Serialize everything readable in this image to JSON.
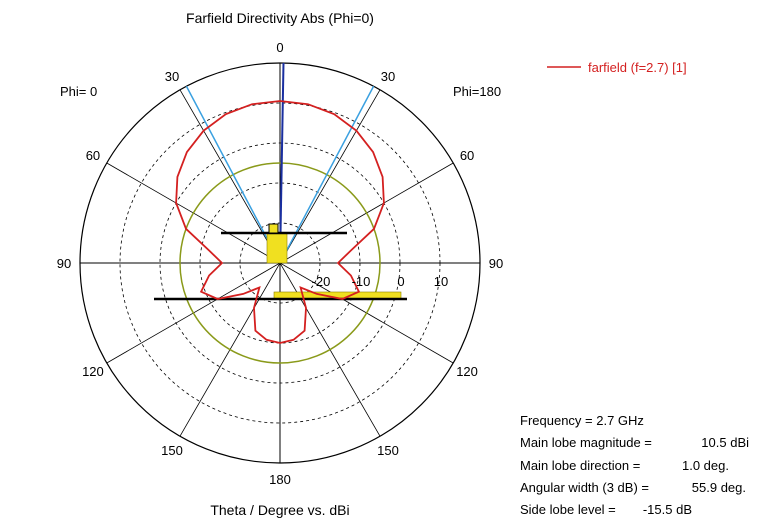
{
  "chart_data": {
    "type": "polar-line",
    "title": "Farfield Directivity Abs (Phi=0)",
    "xlabel": "Theta / Degree vs. dBi",
    "left_label": "Phi=  0",
    "right_label": "Phi=180",
    "theta_tick_labels": [
      "0",
      "30",
      "60",
      "90",
      "120",
      "150",
      "180"
    ],
    "radial_tick_labels": [
      "-20",
      "-10",
      "0",
      "10"
    ],
    "rlim": [
      -30,
      20
    ],
    "radial_ticks": [
      -20,
      -10,
      0,
      10
    ],
    "grid": true,
    "legend_position": "top-right",
    "series": [
      {
        "name": "farfield (f=2.7) [1]",
        "color": "#d42020",
        "points": [
          {
            "theta": 0,
            "value": 10.5
          },
          {
            "theta": 10,
            "value": 10.3
          },
          {
            "theta": 20,
            "value": 9.6
          },
          {
            "theta": 30,
            "value": 8.2
          },
          {
            "theta": 40,
            "value": 6.2
          },
          {
            "theta": 50,
            "value": 3.5
          },
          {
            "theta": 60,
            "value": 0
          },
          {
            "theta": 70,
            "value": -5
          },
          {
            "theta": 80,
            "value": -12
          },
          {
            "theta": 90,
            "value": -15.5
          },
          {
            "theta": 100,
            "value": -12
          },
          {
            "theta": 110,
            "value": -9
          },
          {
            "theta": 120,
            "value": -12
          },
          {
            "theta": 130,
            "value": -18
          },
          {
            "theta": 140,
            "value": -22
          },
          {
            "theta": 150,
            "value": -17
          },
          {
            "theta": 160,
            "value": -12
          },
          {
            "theta": 170,
            "value": -10.5
          },
          {
            "theta": 180,
            "value": -10
          }
        ]
      }
    ],
    "markers": {
      "main_lobe_direction": 1.0,
      "half_power_beam_edges": [
        -27.9,
        27.9
      ],
      "side_lobe_ring_value": -5,
      "main_lobe_color": "#1a2fa0",
      "beamwidth_color": "#3aa0e0",
      "side_lobe_ring_color": "#8a9a1a",
      "bar_fill_color": "#f0e020"
    },
    "info": {
      "frequency": "Frequency = 2.7 GHz",
      "main_lobe_magnitude_label": "Main lobe magnitude =",
      "main_lobe_magnitude_value": "10.5 dBi",
      "main_lobe_direction_label": "Main lobe direction =",
      "main_lobe_direction_value": "1.0 deg.",
      "angular_width_label": "Angular width (3 dB) =",
      "angular_width_value": "55.9 deg.",
      "side_lobe_level_label": "Side lobe level =",
      "side_lobe_level_value": "-15.5 dB"
    }
  }
}
